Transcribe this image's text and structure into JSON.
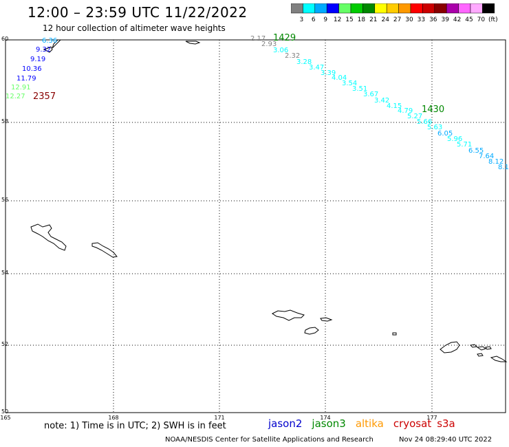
{
  "header": {
    "title": "12:00 – 23:59 UTC 11/22/2022",
    "subtitle": "12 hour collection of altimeter wave heights"
  },
  "colorbar": {
    "colors": [
      "#808080",
      "#00ffff",
      "#00aaff",
      "#0000ff",
      "#66ff66",
      "#00cc00",
      "#008800",
      "#ffff00",
      "#ffcc00",
      "#ff9900",
      "#ff0000",
      "#cc0000",
      "#880000",
      "#aa00aa",
      "#ff66ff",
      "#ffaaff",
      "#000000"
    ],
    "labels": [
      "3",
      "6",
      "9",
      "12",
      "15",
      "18",
      "21",
      "24",
      "27",
      "30",
      "33",
      "36",
      "39",
      "42",
      "45",
      "70",
      "(ft)"
    ]
  },
  "axes": {
    "lon_ticks": [
      "165",
      "168",
      "171",
      "174",
      "177"
    ],
    "lat_ticks": [
      "60",
      "58",
      "56",
      "54",
      "52",
      "50"
    ]
  },
  "tracks": [
    {
      "time": "2357",
      "time_color": "#880000",
      "points": [
        {
          "v": "6.36",
          "c": "#00aaff"
        },
        {
          "v": "9.32",
          "c": "#0000ff"
        },
        {
          "v": "9.19",
          "c": "#0000ff"
        },
        {
          "v": "10.36",
          "c": "#0000ff"
        },
        {
          "v": "11.79",
          "c": "#0000ff"
        },
        {
          "v": "12.91",
          "c": "#66ff66"
        },
        {
          "v": "12.27",
          "c": "#66ff66"
        }
      ]
    },
    {
      "time": "1429",
      "time_color": "#008800",
      "points": [
        {
          "v": "2.17",
          "c": "#808080"
        },
        {
          "v": "2.93",
          "c": "#808080"
        },
        {
          "v": "3.06",
          "c": "#00ffff"
        },
        {
          "v": "2.32",
          "c": "#808080"
        },
        {
          "v": "3.28",
          "c": "#00ffff"
        },
        {
          "v": "3.47",
          "c": "#00ffff"
        },
        {
          "v": "3.39",
          "c": "#00ffff"
        },
        {
          "v": "4.04",
          "c": "#00ffff"
        },
        {
          "v": "3.54",
          "c": "#00ffff"
        },
        {
          "v": "3.51",
          "c": "#00ffff"
        },
        {
          "v": "3.67",
          "c": "#00ffff"
        },
        {
          "v": "3.42",
          "c": "#00ffff"
        },
        {
          "v": "4.15",
          "c": "#00ffff"
        },
        {
          "v": "4.79",
          "c": "#00ffff"
        }
      ]
    },
    {
      "time": "1430",
      "time_color": "#008800",
      "points": [
        {
          "v": "5.27",
          "c": "#00ffff"
        },
        {
          "v": "5.66",
          "c": "#00ffff"
        },
        {
          "v": "5.63",
          "c": "#00ffff"
        },
        {
          "v": "6.05",
          "c": "#00aaff"
        },
        {
          "v": "5.96",
          "c": "#00ffff"
        },
        {
          "v": "5.71",
          "c": "#00ffff"
        },
        {
          "v": "6.55",
          "c": "#00aaff"
        },
        {
          "v": "7.64",
          "c": "#00aaff"
        },
        {
          "v": "8.12",
          "c": "#00aaff"
        },
        {
          "v": "8.1",
          "c": "#00aaff"
        }
      ]
    }
  ],
  "footer": {
    "note": "note: 1) Time is in UTC; 2) SWH is in feet",
    "satellites": [
      {
        "name": "jason2",
        "color": "#0000cc"
      },
      {
        "name": "jason3",
        "color": "#008800"
      },
      {
        "name": "altika",
        "color": "#ff9900"
      },
      {
        "name": "cryosat",
        "color": "#cc0000"
      },
      {
        "name": "s3a",
        "color": "#cc0000"
      }
    ],
    "credit": "NOAA/NESDIS Center for Satellite Applications and Research",
    "timestamp": "Nov 24 08:29:40 UTC 2022"
  }
}
